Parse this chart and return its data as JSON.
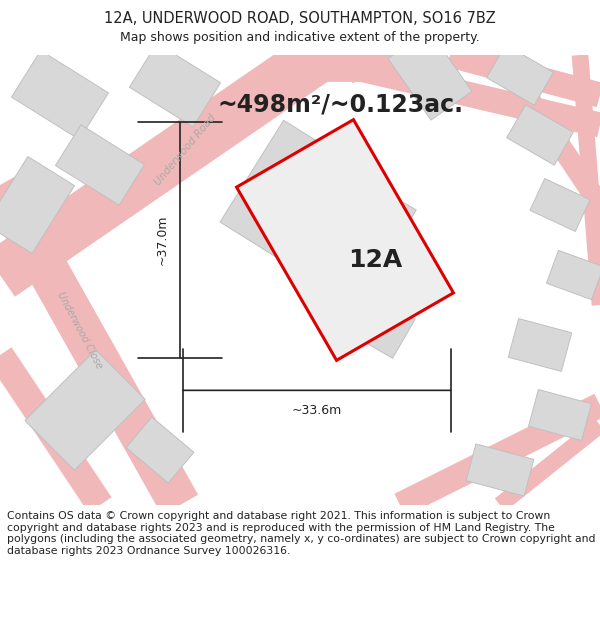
{
  "title_line1": "12A, UNDERWOOD ROAD, SOUTHAMPTON, SO16 7BZ",
  "title_line2": "Map shows position and indicative extent of the property.",
  "area_label": "~498m²/~0.123ac.",
  "property_label": "12A",
  "width_label": "~33.6m",
  "height_label": "~37.0m",
  "footer_text": "Contains OS data © Crown copyright and database right 2021. This information is subject to Crown copyright and database rights 2023 and is reproduced with the permission of HM Land Registry. The polygons (including the associated geometry, namely x, y co-ordinates) are subject to Crown copyright and database rights 2023 Ordnance Survey 100026316.",
  "map_bg": "#f2f2f2",
  "road_color": "#f0b8b8",
  "road_fill": "#e8d0d0",
  "building_color": "#d8d8d8",
  "building_border": "#c0c0c0",
  "property_fill": "#e8e8e8",
  "property_edge": "#dd0000",
  "dim_line_color": "#222222",
  "text_color": "#222222",
  "road_label_color": "#aaaaaa",
  "title_fontsize": 10.5,
  "subtitle_fontsize": 9,
  "area_fontsize": 17,
  "property_label_fontsize": 18,
  "dim_fontsize": 9,
  "footer_fontsize": 7.8,
  "road_linewidth": 5
}
